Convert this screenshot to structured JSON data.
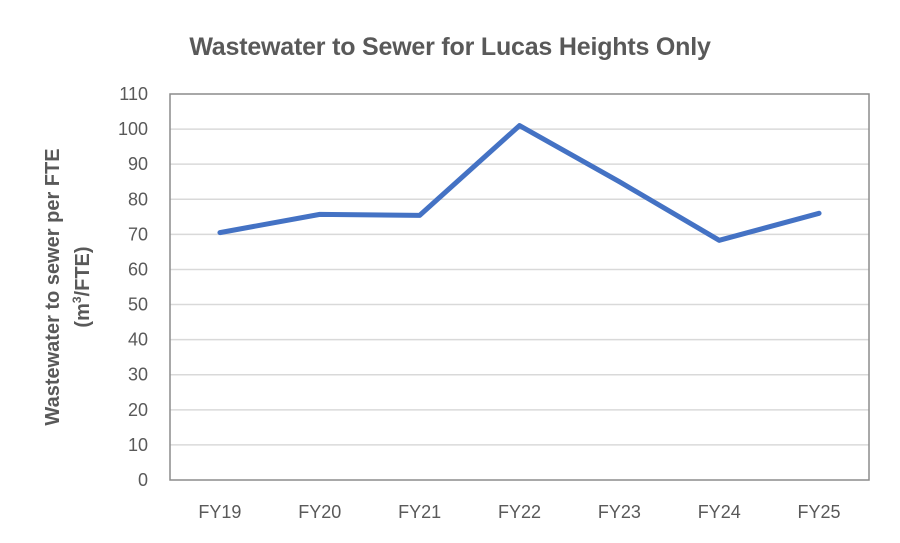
{
  "chart_data": {
    "type": "line",
    "title": "Wastewater to Sewer for Lucas Heights Only",
    "xlabel": "",
    "ylabel": "Wastewater to sewer per FTE (m³/FTE)",
    "ylabel_line1": "Wastewater to sewer per FTE",
    "ylabel_line2_prefix": "(m",
    "ylabel_line2_sup": "3",
    "ylabel_line2_suffix": "/FTE)",
    "categories": [
      "FY19",
      "FY20",
      "FY21",
      "FY22",
      "FY23",
      "FY24",
      "FY25"
    ],
    "series": [
      {
        "name": "Wastewater to sewer per FTE",
        "values": [
          70.5,
          75.7,
          75.4,
          101,
          85,
          68.3,
          76
        ],
        "color": "#4472C4"
      }
    ],
    "ylim": [
      0,
      110
    ],
    "yticks": [
      0,
      10,
      20,
      30,
      40,
      50,
      60,
      70,
      80,
      90,
      100,
      110
    ],
    "grid": true,
    "legend": "none"
  }
}
